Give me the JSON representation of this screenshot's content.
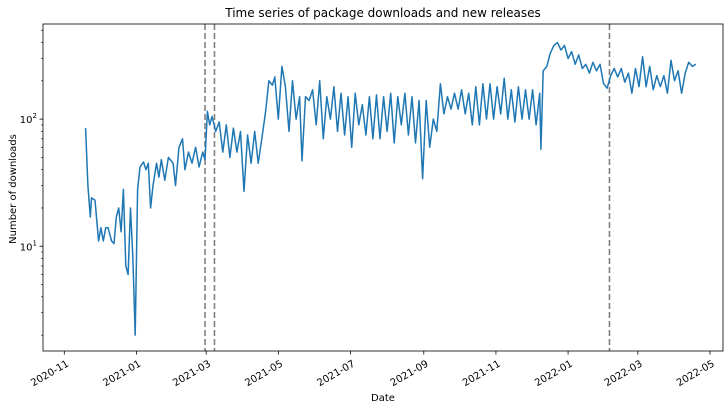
{
  "chart_data": {
    "type": "line",
    "title": "Time series of package downloads and new releases",
    "xlabel": "Date",
    "ylabel": "Number of downloads",
    "y_scale": "log",
    "ylim": [
      1.5,
      560
    ],
    "xlim": [
      "2020-10-14",
      "2022-05-12"
    ],
    "grid": false,
    "line_color": "#1f77b4",
    "release_line_color": "#808080",
    "x_ticks": [
      "2020-11",
      "2021-01",
      "2021-03",
      "2021-05",
      "2021-07",
      "2021-09",
      "2021-11",
      "2022-01",
      "2022-03",
      "2022-05"
    ],
    "y_ticks": [
      {
        "value": 10,
        "base": "10",
        "exp": "1"
      },
      {
        "value": 100,
        "base": "10",
        "exp": "2"
      }
    ],
    "release_dates": [
      "2021-02-28",
      "2021-03-08",
      "2022-02-05"
    ],
    "series": [
      {
        "points": [
          [
            "2020-11-19",
            85
          ],
          [
            "2020-11-21",
            30
          ],
          [
            "2020-11-23",
            17
          ],
          [
            "2020-11-24",
            24
          ],
          [
            "2020-11-27",
            23
          ],
          [
            "2020-11-30",
            11
          ],
          [
            "2020-12-02",
            14
          ],
          [
            "2020-12-04",
            11
          ],
          [
            "2020-12-06",
            14
          ],
          [
            "2020-12-08",
            14
          ],
          [
            "2020-12-11",
            11
          ],
          [
            "2020-12-13",
            10.5
          ],
          [
            "2020-12-15",
            17
          ],
          [
            "2020-12-17",
            20
          ],
          [
            "2020-12-19",
            13
          ],
          [
            "2020-12-21",
            28
          ],
          [
            "2020-12-23",
            7
          ],
          [
            "2020-12-25",
            6
          ],
          [
            "2020-12-27",
            20
          ],
          [
            "2020-12-29",
            8
          ],
          [
            "2020-12-31",
            2
          ],
          [
            "2021-01-02",
            28
          ],
          [
            "2021-01-04",
            42
          ],
          [
            "2021-01-07",
            46
          ],
          [
            "2021-01-09",
            40
          ],
          [
            "2021-01-11",
            45
          ],
          [
            "2021-01-13",
            20
          ],
          [
            "2021-01-15",
            30
          ],
          [
            "2021-01-18",
            45
          ],
          [
            "2021-01-20",
            35
          ],
          [
            "2021-01-22",
            48
          ],
          [
            "2021-01-25",
            33
          ],
          [
            "2021-01-28",
            50
          ],
          [
            "2021-02-01",
            45
          ],
          [
            "2021-02-03",
            30
          ],
          [
            "2021-02-06",
            60
          ],
          [
            "2021-02-09",
            70
          ],
          [
            "2021-02-11",
            40
          ],
          [
            "2021-02-14",
            55
          ],
          [
            "2021-02-17",
            45
          ],
          [
            "2021-02-20",
            60
          ],
          [
            "2021-02-23",
            42
          ],
          [
            "2021-02-26",
            55
          ],
          [
            "2021-02-28",
            48
          ],
          [
            "2021-03-02",
            115
          ],
          [
            "2021-03-04",
            90
          ],
          [
            "2021-03-06",
            105
          ],
          [
            "2021-03-09",
            80
          ],
          [
            "2021-03-12",
            95
          ],
          [
            "2021-03-15",
            55
          ],
          [
            "2021-03-18",
            90
          ],
          [
            "2021-03-21",
            50
          ],
          [
            "2021-03-24",
            85
          ],
          [
            "2021-03-27",
            55
          ],
          [
            "2021-03-30",
            80
          ],
          [
            "2021-04-02",
            27
          ],
          [
            "2021-04-05",
            75
          ],
          [
            "2021-04-08",
            45
          ],
          [
            "2021-04-11",
            80
          ],
          [
            "2021-04-14",
            45
          ],
          [
            "2021-04-17",
            70
          ],
          [
            "2021-04-20",
            110
          ],
          [
            "2021-04-23",
            200
          ],
          [
            "2021-04-26",
            185
          ],
          [
            "2021-04-28",
            215
          ],
          [
            "2021-05-01",
            100
          ],
          [
            "2021-05-04",
            260
          ],
          [
            "2021-05-07",
            180
          ],
          [
            "2021-05-10",
            80
          ],
          [
            "2021-05-13",
            200
          ],
          [
            "2021-05-16",
            100
          ],
          [
            "2021-05-19",
            150
          ],
          [
            "2021-05-21",
            47
          ],
          [
            "2021-05-24",
            150
          ],
          [
            "2021-05-27",
            140
          ],
          [
            "2021-05-30",
            170
          ],
          [
            "2021-06-02",
            90
          ],
          [
            "2021-06-05",
            200
          ],
          [
            "2021-06-08",
            70
          ],
          [
            "2021-06-11",
            150
          ],
          [
            "2021-06-14",
            100
          ],
          [
            "2021-06-17",
            180
          ],
          [
            "2021-06-20",
            80
          ],
          [
            "2021-06-23",
            160
          ],
          [
            "2021-06-26",
            75
          ],
          [
            "2021-06-29",
            150
          ],
          [
            "2021-07-02",
            60
          ],
          [
            "2021-07-05",
            160
          ],
          [
            "2021-07-08",
            90
          ],
          [
            "2021-07-11",
            130
          ],
          [
            "2021-07-14",
            75
          ],
          [
            "2021-07-17",
            150
          ],
          [
            "2021-07-20",
            70
          ],
          [
            "2021-07-23",
            155
          ],
          [
            "2021-07-26",
            70
          ],
          [
            "2021-07-29",
            150
          ],
          [
            "2021-08-01",
            80
          ],
          [
            "2021-08-04",
            160
          ],
          [
            "2021-08-07",
            65
          ],
          [
            "2021-08-10",
            150
          ],
          [
            "2021-08-13",
            90
          ],
          [
            "2021-08-16",
            160
          ],
          [
            "2021-08-19",
            75
          ],
          [
            "2021-08-22",
            150
          ],
          [
            "2021-08-25",
            65
          ],
          [
            "2021-08-28",
            140
          ],
          [
            "2021-08-31",
            34
          ],
          [
            "2021-09-03",
            140
          ],
          [
            "2021-09-06",
            60
          ],
          [
            "2021-09-09",
            100
          ],
          [
            "2021-09-12",
            80
          ],
          [
            "2021-09-15",
            190
          ],
          [
            "2021-09-18",
            110
          ],
          [
            "2021-09-21",
            150
          ],
          [
            "2021-09-24",
            120
          ],
          [
            "2021-09-27",
            160
          ],
          [
            "2021-09-30",
            120
          ],
          [
            "2021-10-03",
            170
          ],
          [
            "2021-10-06",
            110
          ],
          [
            "2021-10-09",
            160
          ],
          [
            "2021-10-12",
            90
          ],
          [
            "2021-10-15",
            180
          ],
          [
            "2021-10-18",
            90
          ],
          [
            "2021-10-21",
            190
          ],
          [
            "2021-10-24",
            100
          ],
          [
            "2021-10-27",
            190
          ],
          [
            "2021-10-30",
            100
          ],
          [
            "2021-11-02",
            180
          ],
          [
            "2021-11-05",
            110
          ],
          [
            "2021-11-08",
            210
          ],
          [
            "2021-11-11",
            100
          ],
          [
            "2021-11-14",
            170
          ],
          [
            "2021-11-17",
            95
          ],
          [
            "2021-11-20",
            180
          ],
          [
            "2021-11-23",
            100
          ],
          [
            "2021-11-26",
            170
          ],
          [
            "2021-11-29",
            100
          ],
          [
            "2021-12-02",
            170
          ],
          [
            "2021-12-05",
            90
          ],
          [
            "2021-12-08",
            160
          ],
          [
            "2021-12-09",
            58
          ],
          [
            "2021-12-11",
            240
          ],
          [
            "2021-12-14",
            260
          ],
          [
            "2021-12-17",
            330
          ],
          [
            "2021-12-20",
            380
          ],
          [
            "2021-12-23",
            400
          ],
          [
            "2021-12-26",
            350
          ],
          [
            "2021-12-29",
            380
          ],
          [
            "2022-01-01",
            300
          ],
          [
            "2022-01-04",
            340
          ],
          [
            "2022-01-07",
            270
          ],
          [
            "2022-01-10",
            320
          ],
          [
            "2022-01-13",
            250
          ],
          [
            "2022-01-16",
            270
          ],
          [
            "2022-01-19",
            230
          ],
          [
            "2022-01-22",
            280
          ],
          [
            "2022-01-25",
            240
          ],
          [
            "2022-01-28",
            270
          ],
          [
            "2022-01-31",
            190
          ],
          [
            "2022-02-03",
            175
          ],
          [
            "2022-02-06",
            220
          ],
          [
            "2022-02-09",
            250
          ],
          [
            "2022-02-12",
            215
          ],
          [
            "2022-02-15",
            250
          ],
          [
            "2022-02-18",
            195
          ],
          [
            "2022-02-21",
            230
          ],
          [
            "2022-02-24",
            160
          ],
          [
            "2022-02-27",
            250
          ],
          [
            "2022-03-02",
            180
          ],
          [
            "2022-03-05",
            310
          ],
          [
            "2022-03-08",
            180
          ],
          [
            "2022-03-11",
            260
          ],
          [
            "2022-03-14",
            170
          ],
          [
            "2022-03-17",
            220
          ],
          [
            "2022-03-20",
            180
          ],
          [
            "2022-03-23",
            220
          ],
          [
            "2022-03-26",
            160
          ],
          [
            "2022-03-29",
            290
          ],
          [
            "2022-04-01",
            200
          ],
          [
            "2022-04-04",
            240
          ],
          [
            "2022-04-07",
            160
          ],
          [
            "2022-04-10",
            230
          ],
          [
            "2022-04-13",
            280
          ],
          [
            "2022-04-16",
            260
          ],
          [
            "2022-04-19",
            270
          ]
        ]
      }
    ]
  }
}
